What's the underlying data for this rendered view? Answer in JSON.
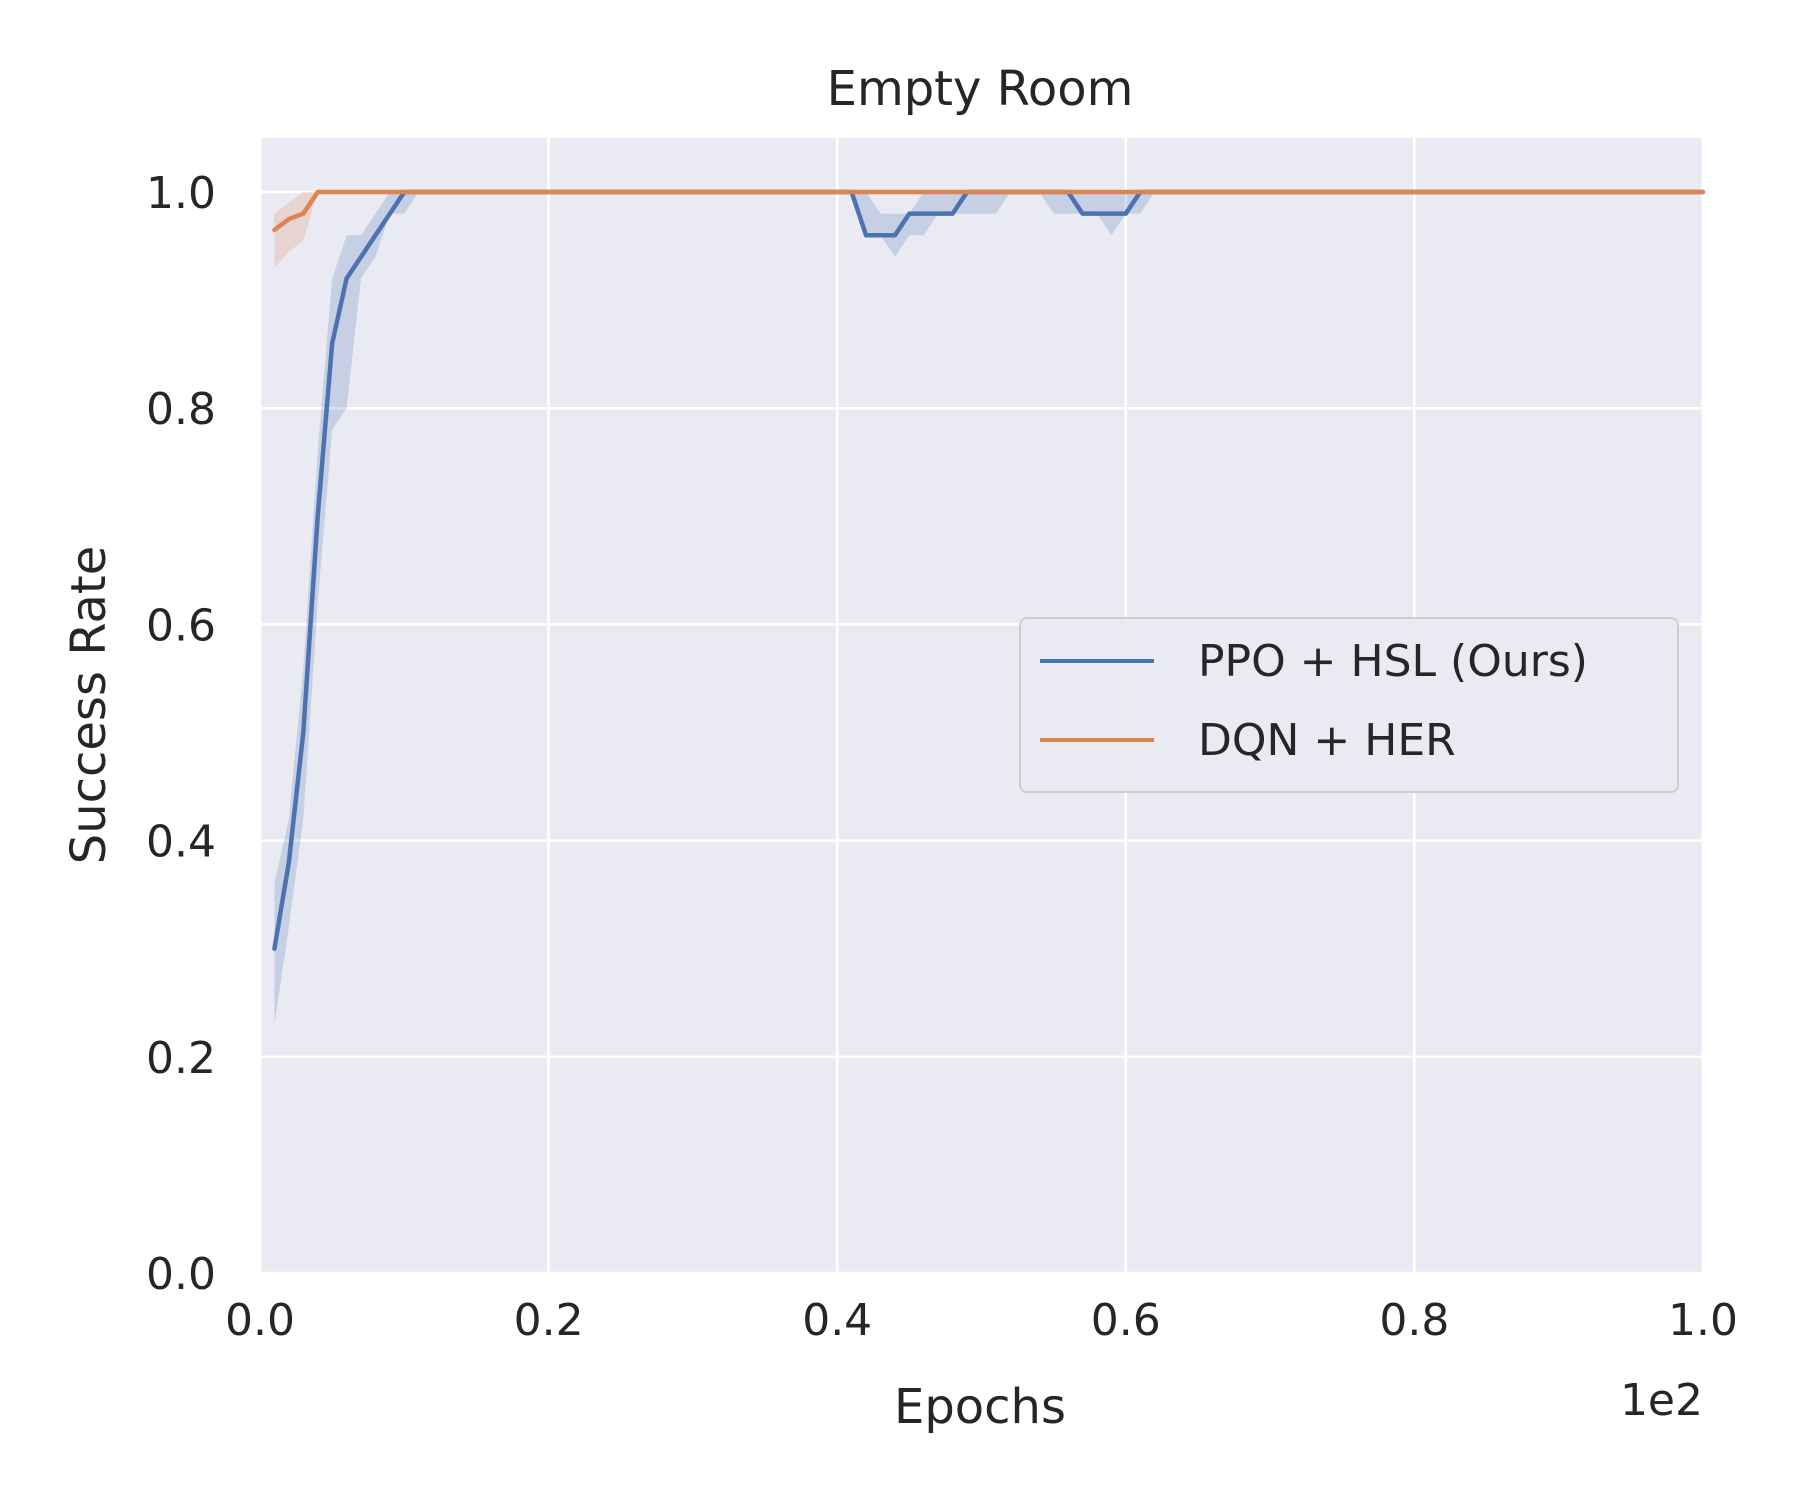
{
  "chart_data": {
    "type": "line",
    "title": "Empty Room",
    "xlabel": "Epochs",
    "ylabel": "Success Rate",
    "x_offset_label": "1e2",
    "xlim": [
      0,
      1.0
    ],
    "ylim": [
      0,
      1.05
    ],
    "xticks": [
      "0.0",
      "0.2",
      "0.4",
      "0.6",
      "0.8",
      "1.0"
    ],
    "yticks": [
      "0.0",
      "0.2",
      "0.4",
      "0.6",
      "0.8",
      "1.0"
    ],
    "grid": true,
    "legend_position": "center-right",
    "colors": {
      "background": "#eaeaf2",
      "grid": "#ffffff",
      "ppo": "#4c72b0",
      "dqn": "#dd8452"
    },
    "series": [
      {
        "name": "PPO + HSL (Ours)",
        "color": "#4c72b0",
        "x": [
          0.01,
          0.02,
          0.03,
          0.04,
          0.05,
          0.06,
          0.07,
          0.08,
          0.09,
          0.1,
          0.11,
          0.2,
          0.3,
          0.41,
          0.42,
          0.43,
          0.44,
          0.45,
          0.46,
          0.47,
          0.48,
          0.49,
          0.5,
          0.51,
          0.52,
          0.53,
          0.54,
          0.55,
          0.56,
          0.57,
          0.58,
          0.59,
          0.6,
          0.61,
          0.62,
          0.7,
          0.8,
          0.9,
          1.0
        ],
        "y": [
          0.3,
          0.38,
          0.5,
          0.7,
          0.86,
          0.92,
          0.94,
          0.96,
          0.98,
          1.0,
          1.0,
          1.0,
          1.0,
          1.0,
          0.96,
          0.96,
          0.96,
          0.98,
          0.98,
          0.98,
          0.98,
          1.0,
          1.0,
          1.0,
          1.0,
          1.0,
          1.0,
          1.0,
          1.0,
          0.98,
          0.98,
          0.98,
          0.98,
          1.0,
          1.0,
          1.0,
          1.0,
          1.0,
          1.0
        ],
        "lower": [
          0.23,
          0.32,
          0.42,
          0.62,
          0.78,
          0.8,
          0.92,
          0.94,
          0.98,
          0.98,
          1.0,
          1.0,
          1.0,
          1.0,
          0.96,
          0.96,
          0.94,
          0.96,
          0.96,
          0.98,
          0.98,
          0.98,
          0.98,
          0.98,
          1.0,
          1.0,
          1.0,
          0.98,
          0.98,
          0.98,
          0.98,
          0.96,
          0.98,
          0.98,
          1.0,
          1.0,
          1.0,
          1.0,
          1.0
        ],
        "upper": [
          0.36,
          0.42,
          0.56,
          0.76,
          0.92,
          0.96,
          0.96,
          0.98,
          1.0,
          1.0,
          1.0,
          1.0,
          1.0,
          1.0,
          1.0,
          0.98,
          0.98,
          0.98,
          1.0,
          1.0,
          1.0,
          1.0,
          1.0,
          1.0,
          1.0,
          1.0,
          1.0,
          1.0,
          1.0,
          1.0,
          1.0,
          1.0,
          1.0,
          1.0,
          1.0,
          1.0,
          1.0,
          1.0,
          1.0
        ]
      },
      {
        "name": "DQN + HER",
        "color": "#dd8452",
        "x": [
          0.01,
          0.02,
          0.03,
          0.04,
          0.05,
          0.1,
          0.2,
          0.4,
          0.6,
          0.8,
          1.0
        ],
        "y": [
          0.965,
          0.975,
          0.98,
          1.0,
          1.0,
          1.0,
          1.0,
          1.0,
          1.0,
          1.0,
          1.0
        ],
        "lower": [
          0.93,
          0.945,
          0.955,
          1.0,
          1.0,
          1.0,
          1.0,
          1.0,
          1.0,
          1.0,
          1.0
        ],
        "upper": [
          0.98,
          0.99,
          1.0,
          1.0,
          1.0,
          1.0,
          1.0,
          1.0,
          1.0,
          1.0,
          1.0
        ]
      }
    ]
  }
}
